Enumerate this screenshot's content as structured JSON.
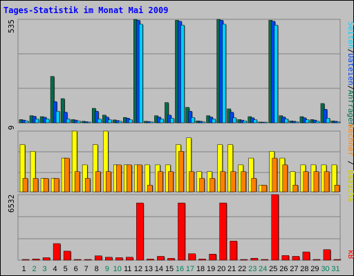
{
  "title": "Tages-Statistik im Monat Mai 2009",
  "colors": {
    "background": "#c0c0c0",
    "title": "#0000ff",
    "anfragen": "#006e4a",
    "dateien": "#0046f0",
    "seiten": "#00d0ff",
    "besuche": "#ffff00",
    "rechner": "#ff8000",
    "kb": "#ff0000",
    "weekend_label": "#00805a",
    "weekday_label": "#000000"
  },
  "legend": {
    "anfragen": "Anfragen",
    "dateien": "Dateien",
    "seiten": "Seiten",
    "besuche": "Besuche",
    "rechner": "Rechner",
    "kb": "kB"
  },
  "chart_data": [
    {
      "type": "bar",
      "panel": "anfragen-dateien-seiten",
      "ylabel": "535",
      "ylim": [
        0,
        535
      ],
      "categories": [
        "1",
        "2",
        "3",
        "4",
        "5",
        "6",
        "7",
        "8",
        "9",
        "10",
        "11",
        "12",
        "13",
        "14",
        "15",
        "16",
        "17",
        "18",
        "19",
        "20",
        "21",
        "22",
        "23",
        "24",
        "25",
        "26",
        "27",
        "28",
        "29",
        "30",
        "31"
      ],
      "series": [
        {
          "name": "Anfragen",
          "values": [
            17,
            37,
            32,
            240,
            125,
            17,
            8,
            75,
            40,
            15,
            28,
            535,
            8,
            37,
            105,
            530,
            80,
            10,
            37,
            535,
            72,
            17,
            32,
            4,
            530,
            37,
            10,
            32,
            17,
            100,
            10
          ]
        },
        {
          "name": "Dateien",
          "values": [
            14,
            34,
            29,
            110,
            55,
            14,
            6,
            60,
            30,
            12,
            24,
            530,
            7,
            30,
            40,
            525,
            60,
            8,
            30,
            530,
            55,
            14,
            26,
            3,
            525,
            30,
            8,
            26,
            14,
            70,
            8
          ]
        },
        {
          "name": "Seiten",
          "values": [
            10,
            20,
            20,
            60,
            20,
            10,
            4,
            20,
            16,
            8,
            16,
            510,
            5,
            20,
            24,
            505,
            28,
            5,
            20,
            510,
            26,
            10,
            16,
            2,
            505,
            20,
            5,
            16,
            8,
            24,
            5
          ]
        }
      ]
    },
    {
      "type": "bar",
      "panel": "besuche-rechner",
      "ylabel": "9",
      "ylim": [
        0,
        9
      ],
      "categories": [
        "1",
        "2",
        "3",
        "4",
        "5",
        "6",
        "7",
        "8",
        "9",
        "10",
        "11",
        "12",
        "13",
        "14",
        "15",
        "16",
        "17",
        "18",
        "19",
        "20",
        "21",
        "22",
        "23",
        "24",
        "25",
        "26",
        "27",
        "28",
        "29",
        "30",
        "31"
      ],
      "series": [
        {
          "name": "Besuche",
          "values": [
            7,
            6,
            2,
            2,
            5,
            9,
            4,
            7,
            9,
            4,
            4,
            4,
            4,
            4,
            4,
            7,
            8,
            3,
            3,
            7,
            7,
            4,
            5,
            1,
            6,
            5,
            3,
            4,
            4,
            4,
            4
          ]
        },
        {
          "name": "Rechner",
          "values": [
            2,
            2,
            2,
            2,
            5,
            3,
            2,
            3,
            3,
            4,
            4,
            4,
            1,
            3,
            3,
            6,
            3,
            2,
            2,
            3,
            3,
            3,
            2,
            1,
            5,
            4,
            1,
            3,
            3,
            3,
            1
          ]
        }
      ]
    },
    {
      "type": "bar",
      "panel": "kb",
      "ylabel": "6532",
      "ylim": [
        0,
        6532
      ],
      "categories": [
        "1",
        "2",
        "3",
        "4",
        "5",
        "6",
        "7",
        "8",
        "9",
        "10",
        "11",
        "12",
        "13",
        "14",
        "15",
        "16",
        "17",
        "18",
        "19",
        "20",
        "21",
        "22",
        "23",
        "24",
        "25",
        "26",
        "27",
        "28",
        "29",
        "30",
        "31"
      ],
      "series": [
        {
          "name": "kB",
          "values": [
            20,
            120,
            250,
            1650,
            900,
            20,
            20,
            430,
            290,
            250,
            290,
            5700,
            110,
            380,
            180,
            5700,
            640,
            110,
            600,
            5700,
            1900,
            20,
            190,
            20,
            6532,
            460,
            380,
            820,
            20,
            1050,
            20
          ]
        }
      ]
    }
  ],
  "day_labels": [
    "1",
    "2",
    "3",
    "4",
    "5",
    "6",
    "7",
    "8",
    "9",
    "10",
    "11",
    "12",
    "13",
    "14",
    "15",
    "16",
    "17",
    "18",
    "19",
    "20",
    "21",
    "22",
    "23",
    "24",
    "25",
    "26",
    "27",
    "28",
    "29",
    "30",
    "31"
  ],
  "weekend_days": [
    "2",
    "3",
    "9",
    "10",
    "16",
    "17",
    "23",
    "24",
    "30",
    "31"
  ]
}
